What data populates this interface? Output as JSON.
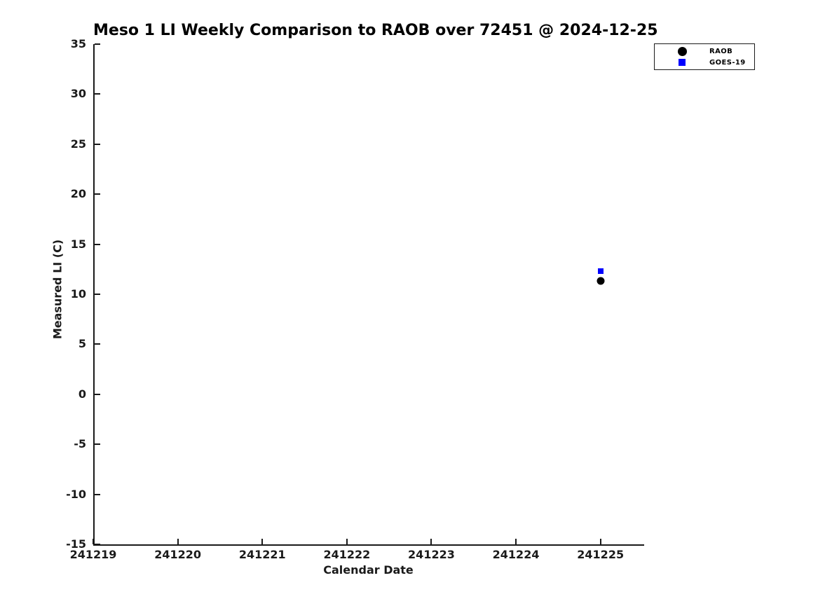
{
  "chart_data": {
    "type": "scatter",
    "title": "Meso 1 LI Weekly Comparison to RAOB over 72451 @ 2024-12-25",
    "xlabel": "Calendar Date",
    "ylabel": "Measured LI (C)",
    "xlim": [
      241219,
      241225.5
    ],
    "ylim": [
      -15,
      35
    ],
    "x_ticks": [
      241219,
      241220,
      241221,
      241222,
      241223,
      241224,
      241225
    ],
    "y_ticks": [
      35,
      30,
      25,
      20,
      15,
      10,
      5,
      0,
      -5,
      -10,
      -15
    ],
    "grid": false,
    "legend_position": "upper-right",
    "series": [
      {
        "name": "RAOB",
        "marker": "circle",
        "color": "#000000",
        "points": [
          {
            "x": 241225,
            "y": 11.3
          }
        ]
      },
      {
        "name": "GOES-19",
        "marker": "square",
        "color": "#0000ff",
        "points": [
          {
            "x": 241225,
            "y": 12.3
          }
        ]
      }
    ]
  },
  "colors": {
    "background": "#ffffff",
    "axis": "#1a1a1a",
    "text": "#1a1a1a"
  }
}
